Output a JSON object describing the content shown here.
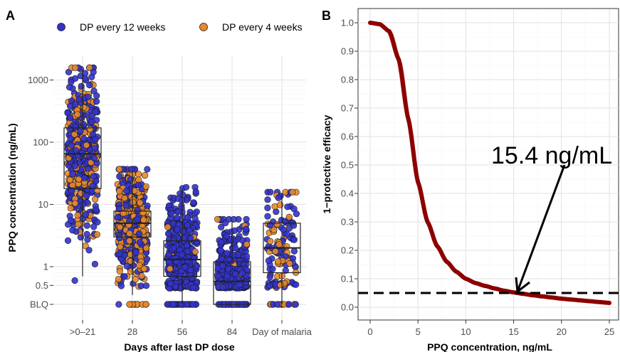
{
  "chart_data": [
    {
      "panel": "A",
      "type": "boxplot-jitter",
      "xlabel": "Days after last DP dose",
      "ylabel": "PPQ concentration (ng/mL)",
      "y_scale": "log",
      "y_ticks": [
        "BLQ",
        "0.5",
        "1",
        "10",
        "100",
        "1000"
      ],
      "categories": [
        ">0–21",
        "28",
        "56",
        "84",
        "Day of malaria"
      ],
      "legend": {
        "position": "top",
        "entries": [
          {
            "name": "DP every 12 weeks",
            "color": "#3333cc"
          },
          {
            "name": "DP every 4 weeks",
            "color": "#e8892b"
          }
        ]
      },
      "boxes": [
        {
          "category": ">0–21",
          "whisker_low": 0.7,
          "q1": 18,
          "median": 65,
          "q3": 170,
          "whisker_high": 1500
        },
        {
          "category": "28",
          "whisker_low": 0.35,
          "q1": 3.0,
          "median": 5.0,
          "q3": 7.8,
          "whisker_high": 35
        },
        {
          "category": "56",
          "whisker_low": 0.25,
          "q1": 0.7,
          "median": 1.3,
          "q3": 2.6,
          "whisker_high": 18
        },
        {
          "category": "84",
          "whisker_low": 0.25,
          "q1": 0.25,
          "median": 0.58,
          "q3": 1.2,
          "whisker_high": 5.5
        },
        {
          "category": "Day of malaria",
          "whisker_low": 0.25,
          "q1": 0.8,
          "median": 2.0,
          "q3": 5.0,
          "whisker_high": 15
        }
      ]
    },
    {
      "panel": "B",
      "type": "line",
      "xlabel": "PPQ concentration, ng/mL",
      "ylabel": "1−protective efficacy",
      "xlim": [
        0,
        25
      ],
      "ylim": [
        0,
        1
      ],
      "x_ticks": [
        "0",
        "5",
        "10",
        "15",
        "20",
        "25"
      ],
      "y_ticks": [
        "0.0",
        "0.1",
        "0.2",
        "0.3",
        "0.4",
        "0.5",
        "0.6",
        "0.7",
        "0.8",
        "0.9",
        "1.0"
      ],
      "curve": {
        "color": "#8b0000",
        "ribbon_color": "#f4a6a6",
        "x": [
          0,
          1,
          2,
          3,
          4,
          5,
          6,
          7,
          8,
          9,
          10,
          11,
          12,
          13,
          14,
          15,
          16,
          17,
          18,
          19,
          20,
          21,
          22,
          23,
          24,
          25
        ],
        "y": [
          1.0,
          0.995,
          0.97,
          0.87,
          0.66,
          0.44,
          0.3,
          0.215,
          0.16,
          0.125,
          0.1,
          0.085,
          0.075,
          0.066,
          0.058,
          0.052,
          0.047,
          0.042,
          0.038,
          0.034,
          0.03,
          0.027,
          0.024,
          0.021,
          0.018,
          0.015
        ]
      },
      "threshold_y": 0.05,
      "annotation": "15.4 ng/mL",
      "annotation_x": 15.4
    }
  ],
  "panel_labels": {
    "a": "A",
    "b": "B"
  }
}
